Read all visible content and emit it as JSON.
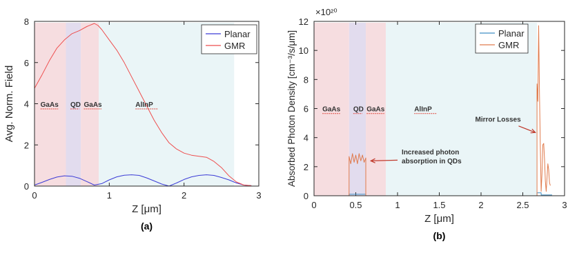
{
  "chart_data": [
    {
      "type": "line",
      "panel_label": "(a)",
      "xlabel": "Z [μm]",
      "ylabel": "Avg. Norm. Field",
      "xlim": [
        0,
        3
      ],
      "ylim": [
        0,
        8
      ],
      "x_ticks": [
        "0",
        "1",
        "2",
        "3"
      ],
      "y_ticks": [
        "0",
        "2",
        "4",
        "6",
        "8"
      ],
      "legend": {
        "placement": "top-right",
        "entries": [
          "Planar",
          "GMR"
        ]
      },
      "regions": [
        {
          "label": "GaAs",
          "x_start": 0.0,
          "x_end": 0.42,
          "color": "#f6dde0"
        },
        {
          "label": "QD",
          "x_start": 0.42,
          "x_end": 0.62,
          "color": "#e2dcee"
        },
        {
          "label": "GaAs",
          "x_start": 0.62,
          "x_end": 0.86,
          "color": "#f6dde0"
        },
        {
          "label": "AlInP",
          "x_start": 0.86,
          "x_end": 2.67,
          "color": "#eaf5f7"
        }
      ],
      "region_label_y": 3.85,
      "region_label_x": [
        0.08,
        0.48,
        0.66,
        1.35
      ],
      "series": [
        {
          "name": "Planar",
          "color": "#3b3bd6",
          "x": [
            0,
            0.1,
            0.2,
            0.3,
            0.4,
            0.5,
            0.6,
            0.7,
            0.8,
            0.9,
            1.0,
            1.1,
            1.2,
            1.3,
            1.4,
            1.5,
            1.6,
            1.7,
            1.8,
            1.9,
            2.0,
            2.1,
            2.2,
            2.3,
            2.4,
            2.5,
            2.6,
            2.7,
            2.8,
            2.9
          ],
          "y": [
            0.05,
            0.18,
            0.32,
            0.44,
            0.5,
            0.48,
            0.38,
            0.22,
            0.05,
            0.12,
            0.3,
            0.45,
            0.53,
            0.55,
            0.52,
            0.4,
            0.25,
            0.1,
            0.0,
            0.15,
            0.32,
            0.45,
            0.52,
            0.55,
            0.52,
            0.42,
            0.3,
            0.15,
            0.05,
            0.02
          ]
        },
        {
          "name": "GMR",
          "color": "#ee4e4e",
          "x": [
            0,
            0.1,
            0.2,
            0.3,
            0.4,
            0.5,
            0.6,
            0.7,
            0.8,
            0.85,
            0.9,
            1.0,
            1.1,
            1.2,
            1.3,
            1.4,
            1.5,
            1.6,
            1.7,
            1.8,
            1.9,
            2.0,
            2.1,
            2.2,
            2.3,
            2.4,
            2.5,
            2.6,
            2.7,
            2.8,
            2.9
          ],
          "y": [
            4.75,
            5.4,
            6.1,
            6.7,
            7.1,
            7.4,
            7.55,
            7.75,
            7.9,
            7.8,
            7.6,
            7.1,
            6.6,
            6.0,
            5.3,
            4.6,
            3.9,
            3.2,
            2.6,
            2.1,
            1.8,
            1.6,
            1.5,
            1.45,
            1.4,
            1.2,
            0.9,
            0.5,
            0.2,
            0.05,
            0.02
          ]
        }
      ]
    },
    {
      "type": "line",
      "panel_label": "(b)",
      "xlabel": "Z [μm]",
      "ylabel": "Absorbed Photon Density [cm⁻³/s/μm]",
      "y_multiplier": "×10²⁰",
      "xlim": [
        0,
        3
      ],
      "ylim": [
        0,
        12
      ],
      "x_ticks": [
        "0",
        "0.5",
        "1",
        "1.5",
        "2",
        "2.5",
        "3"
      ],
      "y_ticks": [
        "0",
        "2",
        "4",
        "6",
        "8",
        "10",
        "12"
      ],
      "legend": {
        "placement": "top-right",
        "entries": [
          "Planar",
          "GMR"
        ]
      },
      "regions": [
        {
          "label": "GaAs",
          "x_start": 0.0,
          "x_end": 0.42,
          "color": "#f6dde0"
        },
        {
          "label": "QD",
          "x_start": 0.42,
          "x_end": 0.62,
          "color": "#e2dcee"
        },
        {
          "label": "GaAs",
          "x_start": 0.62,
          "x_end": 0.86,
          "color": "#f6dde0"
        },
        {
          "label": "AlInP",
          "x_start": 0.86,
          "x_end": 2.67,
          "color": "#eaf5f7"
        }
      ],
      "region_label_y": 5.8,
      "region_label_x": [
        0.1,
        0.47,
        0.63,
        1.2
      ],
      "annotations": [
        {
          "lines": [
            "Increased photon",
            "absorption in QDs"
          ],
          "text_x": 1.05,
          "text_y": 2.85,
          "arrow_from": [
            1.0,
            2.45
          ],
          "arrow_to": [
            0.68,
            2.4
          ]
        },
        {
          "lines": [
            "Mirror Losses"
          ],
          "text_x": 1.93,
          "text_y": 5.1,
          "arrow_from": [
            2.45,
            4.8
          ],
          "arrow_to": [
            2.65,
            4.35
          ]
        }
      ],
      "series": [
        {
          "name": "Planar",
          "color": "#3e8ec4",
          "x": [
            0,
            0.42,
            0.42,
            0.62,
            0.62,
            2.67,
            2.67,
            2.72,
            2.72,
            2.85
          ],
          "y": [
            0,
            0,
            0.1,
            0.1,
            0,
            0,
            0.2,
            0.2,
            0.05,
            0.05
          ]
        },
        {
          "name": "GMR",
          "color": "#e07a4c",
          "x": [
            0,
            0.42,
            0.42,
            0.44,
            0.46,
            0.48,
            0.5,
            0.52,
            0.54,
            0.56,
            0.58,
            0.6,
            0.62,
            0.62,
            2.67,
            2.67,
            2.68,
            2.69,
            2.7,
            2.71,
            2.72,
            2.73,
            2.74,
            2.75,
            2.76,
            2.77,
            2.78,
            2.79,
            2.8,
            2.81,
            2.82,
            2.83
          ],
          "y": [
            0,
            0,
            2.7,
            2.2,
            2.9,
            2.3,
            2.8,
            2.2,
            2.9,
            2.4,
            2.8,
            2.3,
            2.6,
            0,
            0,
            7.7,
            6.5,
            11.7,
            7.0,
            3.3,
            0.3,
            1.5,
            3.5,
            3.6,
            2.5,
            1.0,
            0.3,
            1.2,
            2.2,
            1.8,
            0.9,
            0.7
          ]
        }
      ]
    }
  ]
}
